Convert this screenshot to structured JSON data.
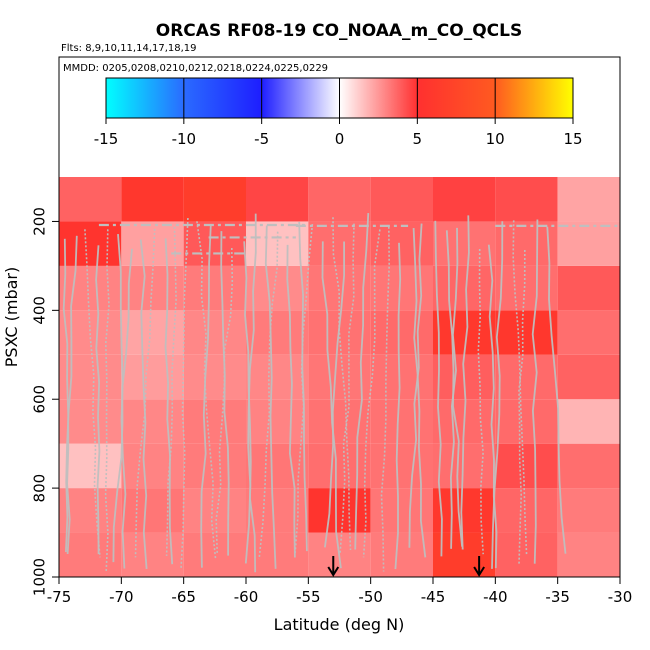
{
  "chart_data": {
    "type": "heatmap",
    "title": "ORCAS RF08-19 CO_NOAA_m_CO_QCLS",
    "subtitle": "Flts: 8,9,10,11,14,17,18,19",
    "annotation": "MMDD: 0205,0208,0210,0212,0218,0224,0225,0229",
    "xlabel": "Latitude (deg N)",
    "ylabel": "PSXC (mbar)",
    "xlim": [
      -75,
      -30
    ],
    "ylim": [
      1000,
      100
    ],
    "xticks": [
      "-75",
      "-70",
      "-65",
      "-60",
      "-55",
      "-50",
      "-45",
      "-40",
      "-35",
      "-30"
    ],
    "yticks": [
      "200",
      "400",
      "600",
      "800",
      "1000"
    ],
    "colorbar": {
      "range": [
        -15,
        15
      ],
      "ticks": [
        "-15",
        "-10",
        "-5",
        "0",
        "5",
        "10",
        "15"
      ],
      "colors": [
        "#00ffff",
        "#2a6bff",
        "#1e1eff",
        "#ffffff",
        "#ff3030",
        "#ff5a20",
        "#ffff00"
      ]
    },
    "x_edges": [
      -75,
      -70,
      -65,
      -60,
      -55,
      -50,
      -45,
      -40,
      -35,
      -30
    ],
    "y_edges": [
      1000,
      900,
      800,
      700,
      600,
      500,
      400,
      300,
      200,
      100
    ],
    "values": [
      [
        3.2,
        3.0,
        3.2,
        3.2,
        3.0,
        3.2,
        6.5,
        3.8,
        3.0,
        null
      ],
      [
        3.0,
        3.3,
        3.0,
        3.2,
        5.5,
        3.3,
        6.0,
        3.7,
        3.2,
        null
      ],
      [
        1.5,
        3.0,
        3.2,
        3.3,
        3.5,
        3.4,
        3.5,
        4.3,
        3.5,
        null
      ],
      [
        2.8,
        2.9,
        3.2,
        3.0,
        3.4,
        3.4,
        3.6,
        3.6,
        1.8,
        null
      ],
      [
        2.8,
        2.4,
        2.8,
        2.9,
        3.3,
        3.4,
        3.9,
        3.6,
        3.8,
        null
      ],
      [
        2.8,
        2.2,
        2.9,
        3.2,
        3.4,
        3.6,
        6.0,
        5.8,
        3.5,
        null
      ],
      [
        3.0,
        3.0,
        3.2,
        2.8,
        3.3,
        3.3,
        3.7,
        3.5,
        4.0,
        null
      ],
      [
        5.5,
        2.3,
        4.0,
        1.5,
        3.5,
        3.8,
        3.4,
        3.6,
        2.3,
        2.3
      ],
      [
        3.8,
        5.8,
        6.5,
        4.5,
        3.7,
        4.0,
        4.6,
        4.3,
        2.2,
        2.2
      ]
    ],
    "markers": [
      {
        "type": "arrow-down",
        "x": -53.0
      },
      {
        "type": "arrow-down",
        "x": -41.3
      }
    ],
    "series_color": "#bfbfbf"
  }
}
